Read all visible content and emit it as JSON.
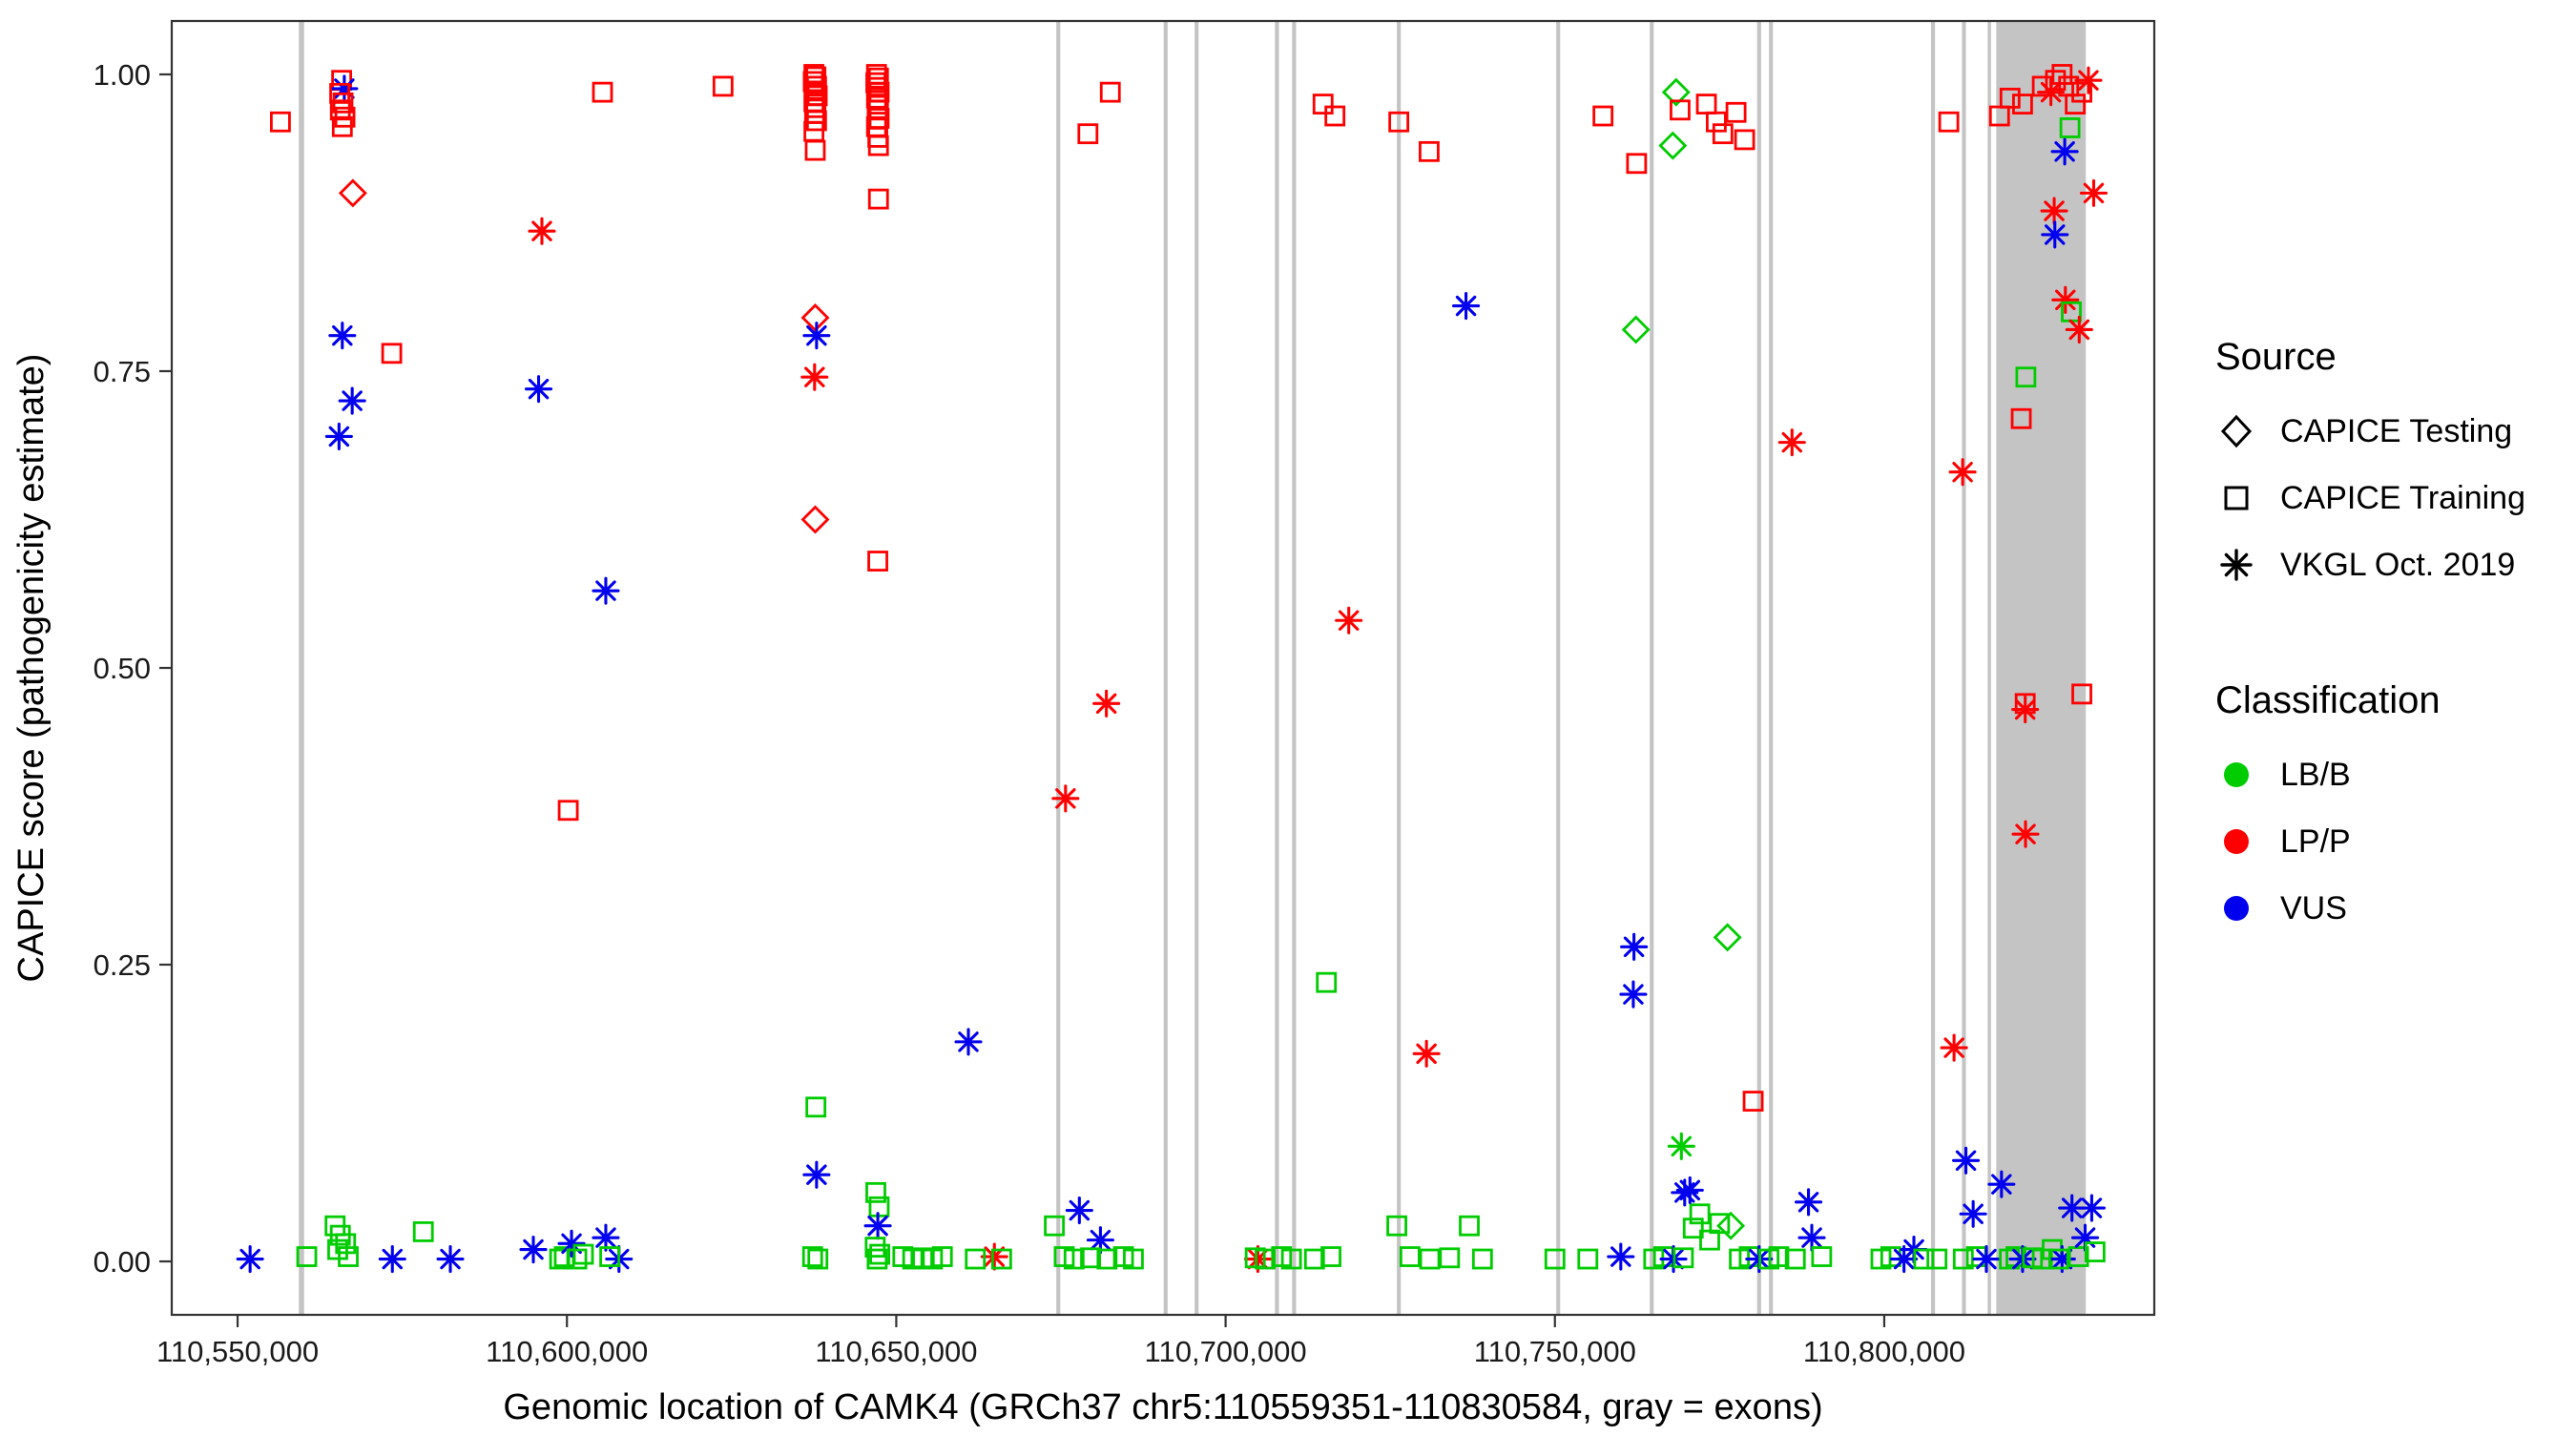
{
  "chart_data": {
    "type": "scatter",
    "title": "",
    "xlabel": "Genomic location of CAMK4 (GRCh37 chr5:110559351-110830584, gray = exons)",
    "ylabel": "CAPICE score (pathogenicity estimate)",
    "xlim": [
      110540000,
      110841000
    ],
    "ylim": [
      -0.045,
      1.045
    ],
    "grid": false,
    "legend_position": "right",
    "background": "#FFFFFF",
    "panel_border_color": "#333333",
    "exon_color": "#C4C4C4",
    "x_ticks": [
      {
        "value": 110550000,
        "label": "110,550,000"
      },
      {
        "value": 110600000,
        "label": "110,600,000"
      },
      {
        "value": 110650000,
        "label": "110,650,000"
      },
      {
        "value": 110700000,
        "label": "110,700,000"
      },
      {
        "value": 110750000,
        "label": "110,750,000"
      },
      {
        "value": 110800000,
        "label": "110,800,000"
      }
    ],
    "y_ticks": [
      {
        "value": 0.0,
        "label": "0.00"
      },
      {
        "value": 0.25,
        "label": "0.25"
      },
      {
        "value": 0.5,
        "label": "0.50"
      },
      {
        "value": 0.75,
        "label": "0.75"
      },
      {
        "value": 1.0,
        "label": "1.00"
      }
    ],
    "sources": {
      "T": "CAPICE Testing",
      "R": "CAPICE Training",
      "V": "VKGL Oct. 2019"
    },
    "source_markers": {
      "T": "diamond",
      "R": "square",
      "V": "asterisk"
    },
    "classes": {
      "B": {
        "label": "LB/B",
        "color": "#00CC00"
      },
      "P": {
        "label": "LP/P",
        "color": "#FF0000"
      },
      "U": {
        "label": "VUS",
        "color": "#0000EE"
      }
    },
    "exons": [
      [
        110559300,
        110560100
      ],
      [
        110674300,
        110674900
      ],
      [
        110690600,
        110691200
      ],
      [
        110695300,
        110695900
      ],
      [
        110707500,
        110708100
      ],
      [
        110710100,
        110710700
      ],
      [
        110726000,
        110726600
      ],
      [
        110750200,
        110750800
      ],
      [
        110764400,
        110765000
      ],
      [
        110780700,
        110781300
      ],
      [
        110782500,
        110783100
      ],
      [
        110807100,
        110807700
      ],
      [
        110811800,
        110812400
      ],
      [
        110815700,
        110816100
      ],
      [
        110817000,
        110830600
      ]
    ],
    "points": [
      [
        110551900,
        0.002,
        "V",
        "U"
      ],
      [
        110556500,
        0.96,
        "R",
        "P"
      ],
      [
        110560500,
        0.004,
        "R",
        "B"
      ],
      [
        110565800,
        0.995,
        "R",
        "P"
      ],
      [
        110566200,
        0.988,
        "V",
        "U"
      ],
      [
        110565500,
        0.984,
        "R",
        "P"
      ],
      [
        110566000,
        0.976,
        "R",
        "P"
      ],
      [
        110565600,
        0.97,
        "R",
        "P"
      ],
      [
        110566300,
        0.964,
        "R",
        "P"
      ],
      [
        110565900,
        0.956,
        "R",
        "P"
      ],
      [
        110567500,
        0.9,
        "T",
        "P"
      ],
      [
        110565900,
        0.78,
        "V",
        "U"
      ],
      [
        110567400,
        0.725,
        "V",
        "U"
      ],
      [
        110565400,
        0.695,
        "V",
        "U"
      ],
      [
        110573400,
        0.765,
        "R",
        "P"
      ],
      [
        110564800,
        0.03,
        "R",
        "B"
      ],
      [
        110565600,
        0.022,
        "R",
        "B"
      ],
      [
        110566400,
        0.015,
        "R",
        "B"
      ],
      [
        110565200,
        0.01,
        "R",
        "B"
      ],
      [
        110566800,
        0.004,
        "R",
        "B"
      ],
      [
        110573500,
        0.002,
        "V",
        "U"
      ],
      [
        110578200,
        0.025,
        "R",
        "B"
      ],
      [
        110582300,
        0.002,
        "V",
        "U"
      ],
      [
        110596200,
        0.868,
        "V",
        "P"
      ],
      [
        110595700,
        0.735,
        "V",
        "U"
      ],
      [
        110594900,
        0.01,
        "V",
        "U"
      ],
      [
        110598900,
        0.002,
        "R",
        "B"
      ],
      [
        110599600,
        0.004,
        "R",
        "B"
      ],
      [
        110600200,
        0.38,
        "R",
        "P"
      ],
      [
        110605400,
        0.985,
        "R",
        "P"
      ],
      [
        110605900,
        0.565,
        "V",
        "U"
      ],
      [
        110600700,
        0.015,
        "V",
        "U"
      ],
      [
        110605900,
        0.02,
        "V",
        "U"
      ],
      [
        110601500,
        0.002,
        "R",
        "B"
      ],
      [
        110602500,
        0.006,
        "R",
        "B"
      ],
      [
        110607900,
        0.002,
        "V",
        "U"
      ],
      [
        110606500,
        0.004,
        "R",
        "B"
      ],
      [
        110623700,
        0.99,
        "R",
        "P"
      ],
      [
        110637500,
        1.0,
        "R",
        "P"
      ],
      [
        110637800,
        0.998,
        "R",
        "P"
      ],
      [
        110637400,
        0.994,
        "R",
        "P"
      ],
      [
        110637900,
        0.99,
        "R",
        "P"
      ],
      [
        110637600,
        0.986,
        "R",
        "P"
      ],
      [
        110638000,
        0.982,
        "R",
        "P"
      ],
      [
        110637500,
        0.977,
        "R",
        "P"
      ],
      [
        110637800,
        0.972,
        "R",
        "P"
      ],
      [
        110637600,
        0.967,
        "R",
        "P"
      ],
      [
        110637900,
        0.961,
        "R",
        "P"
      ],
      [
        110637500,
        0.952,
        "R",
        "P"
      ],
      [
        110637700,
        0.936,
        "R",
        "P"
      ],
      [
        110637700,
        0.795,
        "T",
        "P"
      ],
      [
        110637900,
        0.78,
        "V",
        "U"
      ],
      [
        110637600,
        0.745,
        "V",
        "P"
      ],
      [
        110637700,
        0.625,
        "T",
        "P"
      ],
      [
        110637800,
        0.13,
        "R",
        "B"
      ],
      [
        110637900,
        0.073,
        "V",
        "U"
      ],
      [
        110637300,
        0.004,
        "R",
        "B"
      ],
      [
        110638100,
        0.002,
        "R",
        "B"
      ],
      [
        110647000,
        1.0,
        "R",
        "P"
      ],
      [
        110647300,
        0.997,
        "R",
        "P"
      ],
      [
        110646900,
        0.993,
        "R",
        "P"
      ],
      [
        110647200,
        0.989,
        "R",
        "P"
      ],
      [
        110647400,
        0.985,
        "R",
        "P"
      ],
      [
        110647000,
        0.98,
        "R",
        "P"
      ],
      [
        110647300,
        0.975,
        "R",
        "P"
      ],
      [
        110647100,
        0.97,
        "R",
        "P"
      ],
      [
        110647400,
        0.963,
        "R",
        "P"
      ],
      [
        110647000,
        0.956,
        "R",
        "P"
      ],
      [
        110647200,
        0.947,
        "R",
        "P"
      ],
      [
        110647300,
        0.94,
        "R",
        "P"
      ],
      [
        110647300,
        0.895,
        "R",
        "P"
      ],
      [
        110647200,
        0.59,
        "R",
        "P"
      ],
      [
        110646900,
        0.058,
        "R",
        "B"
      ],
      [
        110647400,
        0.046,
        "R",
        "B"
      ],
      [
        110647200,
        0.03,
        "V",
        "U"
      ],
      [
        110646800,
        0.012,
        "R",
        "B"
      ],
      [
        110647500,
        0.006,
        "R",
        "B"
      ],
      [
        110647100,
        0.002,
        "R",
        "B"
      ],
      [
        110651000,
        0.004,
        "R",
        "B"
      ],
      [
        110652500,
        0.002,
        "R",
        "B"
      ],
      [
        110654000,
        0.003,
        "R",
        "B"
      ],
      [
        110655500,
        0.002,
        "R",
        "B"
      ],
      [
        110657000,
        0.004,
        "R",
        "B"
      ],
      [
        110660950,
        0.185,
        "V",
        "U"
      ],
      [
        110664900,
        0.004,
        "V",
        "P"
      ],
      [
        110662000,
        0.002,
        "R",
        "B"
      ],
      [
        110666000,
        0.002,
        "R",
        "B"
      ],
      [
        110675700,
        0.39,
        "V",
        "P"
      ],
      [
        110681900,
        0.47,
        "V",
        "P"
      ],
      [
        110679100,
        0.95,
        "R",
        "P"
      ],
      [
        110682500,
        0.985,
        "R",
        "P"
      ],
      [
        110677800,
        0.043,
        "V",
        "U"
      ],
      [
        110681000,
        0.018,
        "V",
        "U"
      ],
      [
        110674000,
        0.03,
        "R",
        "B"
      ],
      [
        110675500,
        0.004,
        "R",
        "B"
      ],
      [
        110677000,
        0.002,
        "R",
        "B"
      ],
      [
        110679500,
        0.003,
        "R",
        "B"
      ],
      [
        110682000,
        0.002,
        "R",
        "B"
      ],
      [
        110684500,
        0.004,
        "R",
        "B"
      ],
      [
        110686000,
        0.002,
        "R",
        "B"
      ],
      [
        110704900,
        0.002,
        "V",
        "P"
      ],
      [
        110704500,
        0.003,
        "R",
        "B"
      ],
      [
        110706000,
        0.002,
        "R",
        "B"
      ],
      [
        110708500,
        0.004,
        "R",
        "B"
      ],
      [
        110710000,
        0.002,
        "R",
        "B"
      ],
      [
        110714800,
        0.975,
        "R",
        "P"
      ],
      [
        110716600,
        0.965,
        "R",
        "P"
      ],
      [
        110715300,
        0.235,
        "R",
        "B"
      ],
      [
        110718700,
        0.54,
        "V",
        "P"
      ],
      [
        110713500,
        0.002,
        "R",
        "B"
      ],
      [
        110716000,
        0.004,
        "R",
        "B"
      ],
      [
        110726300,
        0.96,
        "R",
        "P"
      ],
      [
        110730900,
        0.935,
        "R",
        "P"
      ],
      [
        110730500,
        0.175,
        "V",
        "P"
      ],
      [
        110736500,
        0.805,
        "V",
        "U"
      ],
      [
        110726000,
        0.03,
        "R",
        "B"
      ],
      [
        110728000,
        0.004,
        "R",
        "B"
      ],
      [
        110731000,
        0.002,
        "R",
        "B"
      ],
      [
        110734000,
        0.003,
        "R",
        "B"
      ],
      [
        110737000,
        0.03,
        "R",
        "B"
      ],
      [
        110739000,
        0.002,
        "R",
        "B"
      ],
      [
        110757300,
        0.965,
        "R",
        "P"
      ],
      [
        110762400,
        0.925,
        "R",
        "P"
      ],
      [
        110762300,
        0.785,
        "T",
        "B"
      ],
      [
        110762000,
        0.265,
        "V",
        "U"
      ],
      [
        110761900,
        0.225,
        "V",
        "U"
      ],
      [
        110750000,
        0.002,
        "R",
        "B"
      ],
      [
        110755000,
        0.002,
        "R",
        "B"
      ],
      [
        110760000,
        0.004,
        "V",
        "U"
      ],
      [
        110768400,
        0.985,
        "T",
        "B"
      ],
      [
        110767900,
        0.94,
        "T",
        "B"
      ],
      [
        110769000,
        0.97,
        "R",
        "P"
      ],
      [
        110773000,
        0.975,
        "R",
        "P"
      ],
      [
        110774500,
        0.96,
        "R",
        "P"
      ],
      [
        110775500,
        0.95,
        "R",
        "P"
      ],
      [
        110777500,
        0.968,
        "R",
        "P"
      ],
      [
        110778800,
        0.945,
        "R",
        "P"
      ],
      [
        110769200,
        0.097,
        "V",
        "B"
      ],
      [
        110769700,
        0.058,
        "V",
        "U"
      ],
      [
        110776200,
        0.273,
        "T",
        "B"
      ],
      [
        110780100,
        0.135,
        "R",
        "P"
      ],
      [
        110786000,
        0.69,
        "V",
        "P"
      ],
      [
        110765000,
        0.002,
        "R",
        "B"
      ],
      [
        110766500,
        0.004,
        "R",
        "B"
      ],
      [
        110768000,
        0.002,
        "V",
        "U"
      ],
      [
        110769500,
        0.003,
        "R",
        "B"
      ],
      [
        110771000,
        0.028,
        "R",
        "B"
      ],
      [
        110772000,
        0.04,
        "R",
        "B"
      ],
      [
        110773500,
        0.018,
        "R",
        "B"
      ],
      [
        110775000,
        0.032,
        "R",
        "B"
      ],
      [
        110776700,
        0.03,
        "T",
        "B"
      ],
      [
        110778000,
        0.002,
        "R",
        "B"
      ],
      [
        110779500,
        0.004,
        "R",
        "B"
      ],
      [
        110781000,
        0.002,
        "V",
        "U"
      ],
      [
        110782500,
        0.002,
        "R",
        "B"
      ],
      [
        110784000,
        0.004,
        "R",
        "B"
      ],
      [
        110788500,
        0.05,
        "V",
        "U"
      ],
      [
        110789000,
        0.02,
        "V",
        "U"
      ],
      [
        110786500,
        0.002,
        "R",
        "B"
      ],
      [
        110790500,
        0.004,
        "R",
        "B"
      ],
      [
        110770500,
        0.06,
        "V",
        "U"
      ],
      [
        110799500,
        0.002,
        "R",
        "B"
      ],
      [
        110801000,
        0.004,
        "R",
        "B"
      ],
      [
        110803000,
        0.002,
        "V",
        "U"
      ],
      [
        110804500,
        0.01,
        "V",
        "U"
      ],
      [
        110806000,
        0.002,
        "R",
        "B"
      ],
      [
        110809800,
        0.96,
        "R",
        "P"
      ],
      [
        110810600,
        0.18,
        "V",
        "P"
      ],
      [
        110811900,
        0.665,
        "V",
        "P"
      ],
      [
        110812400,
        0.085,
        "V",
        "U"
      ],
      [
        110808000,
        0.002,
        "R",
        "B"
      ],
      [
        110812000,
        0.002,
        "R",
        "B"
      ],
      [
        110814000,
        0.004,
        "R",
        "B"
      ],
      [
        110815500,
        0.002,
        "V",
        "U"
      ],
      [
        110813500,
        0.04,
        "V",
        "U"
      ],
      [
        110817500,
        0.965,
        "R",
        "P"
      ],
      [
        110819100,
        0.98,
        "R",
        "P"
      ],
      [
        110821000,
        0.975,
        "R",
        "P"
      ],
      [
        110824000,
        0.99,
        "R",
        "P"
      ],
      [
        110825300,
        0.985,
        "V",
        "P"
      ],
      [
        110826000,
        0.995,
        "R",
        "P"
      ],
      [
        110827000,
        1.0,
        "R",
        "P"
      ],
      [
        110827400,
        0.935,
        "V",
        "U"
      ],
      [
        110828000,
        0.99,
        "R",
        "P"
      ],
      [
        110829000,
        0.975,
        "R",
        "P"
      ],
      [
        110830000,
        0.985,
        "R",
        "P"
      ],
      [
        110831000,
        0.995,
        "V",
        "P"
      ],
      [
        110828200,
        0.955,
        "R",
        "B"
      ],
      [
        110831800,
        0.9,
        "V",
        "P"
      ],
      [
        110825800,
        0.885,
        "V",
        "P"
      ],
      [
        110825900,
        0.865,
        "V",
        "U"
      ],
      [
        110827500,
        0.81,
        "V",
        "P"
      ],
      [
        110828400,
        0.8,
        "R",
        "B"
      ],
      [
        110829600,
        0.785,
        "V",
        "P"
      ],
      [
        110821500,
        0.745,
        "R",
        "B"
      ],
      [
        110820800,
        0.71,
        "R",
        "P"
      ],
      [
        110821400,
        0.465,
        "V",
        "P"
      ],
      [
        110821400,
        0.47,
        "R",
        "P"
      ],
      [
        110830000,
        0.478,
        "R",
        "P"
      ],
      [
        110821450,
        0.36,
        "V",
        "P"
      ],
      [
        110817800,
        0.065,
        "V",
        "U"
      ],
      [
        110819000,
        0.002,
        "R",
        "B"
      ],
      [
        110820000,
        0.004,
        "R",
        "B"
      ],
      [
        110821000,
        0.002,
        "V",
        "U"
      ],
      [
        110822500,
        0.003,
        "R",
        "B"
      ],
      [
        110824000,
        0.002,
        "R",
        "B"
      ],
      [
        110825500,
        0.01,
        "R",
        "B"
      ],
      [
        110827000,
        0.002,
        "V",
        "U"
      ],
      [
        110828500,
        0.045,
        "V",
        "U"
      ],
      [
        110829500,
        0.004,
        "R",
        "B"
      ],
      [
        110830500,
        0.02,
        "V",
        "U"
      ],
      [
        110831500,
        0.045,
        "V",
        "U"
      ],
      [
        110832000,
        0.008,
        "R",
        "B"
      ],
      [
        110826500,
        0.002,
        "R",
        "B"
      ]
    ]
  },
  "legend": {
    "source_title": "Source",
    "source_items": [
      {
        "label": "CAPICE Testing",
        "marker": "diamond"
      },
      {
        "label": "CAPICE Training",
        "marker": "square"
      },
      {
        "label": "VKGL Oct. 2019",
        "marker": "asterisk"
      }
    ],
    "classification_title": "Classification",
    "classification_items": [
      {
        "label": "LB/B",
        "color": "#00CC00"
      },
      {
        "label": "LP/P",
        "color": "#FF0000"
      },
      {
        "label": "VUS",
        "color": "#0000EE"
      }
    ]
  }
}
